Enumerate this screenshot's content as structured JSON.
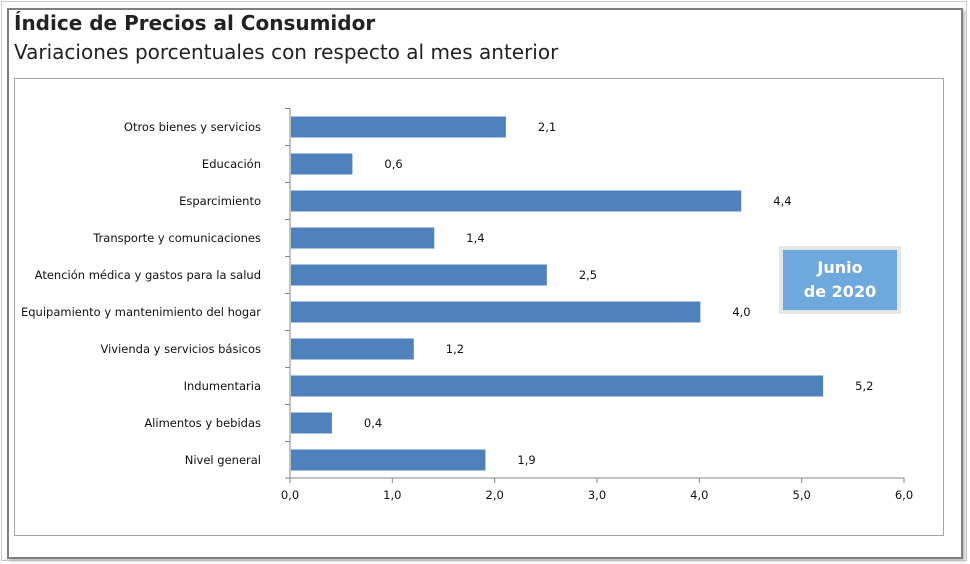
{
  "chart_data": {
    "type": "bar",
    "orientation": "horizontal",
    "title": "Índice de Precios al Consumidor",
    "subtitle": "Variaciones porcentuales con respecto al mes anterior",
    "annotation": {
      "line1": "Junio",
      "line2": "de 2020"
    },
    "categories": [
      "Otros bienes y servicios",
      "Educación",
      "Esparcimiento",
      "Transporte y comunicaciones",
      "Atención médica y gastos para la salud",
      "Equipamiento y  mantenimiento del hogar",
      "Vivienda y servicios básicos",
      "Indumentaria",
      "Alimentos y bebidas",
      "Nivel  general"
    ],
    "values": [
      2.1,
      0.6,
      4.4,
      1.4,
      2.5,
      4.0,
      1.2,
      5.2,
      0.4,
      1.9
    ],
    "value_labels": [
      "2,1",
      "0,6",
      "4,4",
      "1,4",
      "2,5",
      "4,0",
      "1,2",
      "5,2",
      "0,4",
      "1,9"
    ],
    "xlim": [
      0,
      6
    ],
    "x_ticks": [
      0,
      1,
      2,
      3,
      4,
      5,
      6
    ],
    "x_tick_labels": [
      "0,0",
      "1,0",
      "2,0",
      "3,0",
      "4,0",
      "5,0",
      "6,0"
    ],
    "grid": false,
    "legend": "none",
    "bar_color": "#4f81bd",
    "badge_color": "#6fa8dc"
  }
}
